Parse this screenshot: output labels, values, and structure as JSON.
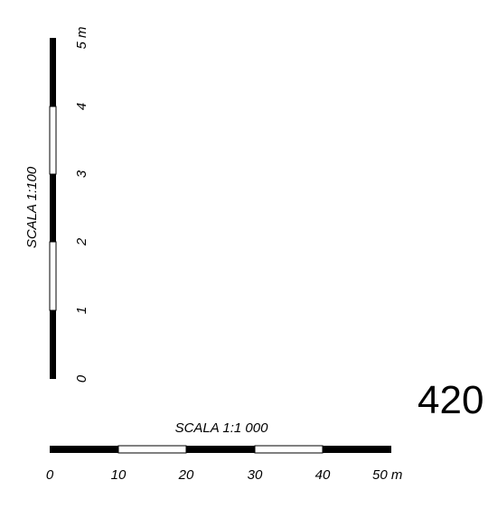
{
  "vertical_scale": {
    "title": "SCALA 1:100",
    "ticks": [
      "0",
      "1",
      "2",
      "3",
      "4",
      "5 m"
    ]
  },
  "horizontal_scale": {
    "title": "SCALA 1:1 000",
    "ticks": [
      "0",
      "10",
      "20",
      "30",
      "40",
      "50 m"
    ]
  },
  "corner_number": "420",
  "colors": {
    "dark": "#000000",
    "light": "#ffffff"
  }
}
